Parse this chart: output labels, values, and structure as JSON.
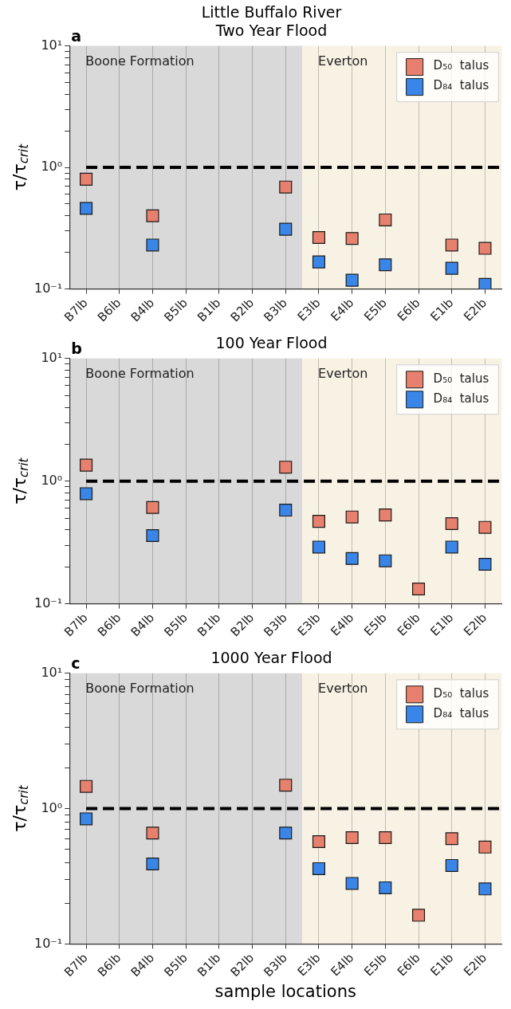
{
  "chart_data": [
    {
      "type": "scatter",
      "title": "Little Buffalo River",
      "subtitle": "Two Year Flood",
      "annotations": [
        "a"
      ],
      "ylabel": "τ/τ$_{crit}$",
      "categories": [
        "B7lb",
        "B6lb",
        "B4lb",
        "B5lb",
        "B1lb",
        "B2lb",
        "B3lb",
        "E3lb",
        "E4lb",
        "E5lb",
        "E6lb",
        "E1lb",
        "E2lb"
      ],
      "series": [
        {
          "name": "D₅₀  talus",
          "color": "#e8806e",
          "values": [
            0.8,
            null,
            0.4,
            null,
            null,
            null,
            0.69,
            0.265,
            0.26,
            0.37,
            null,
            0.23,
            0.216
          ]
        },
        {
          "name": "D₈₄  talus",
          "color": "#3a86e8",
          "values": [
            0.46,
            null,
            0.23,
            null,
            null,
            null,
            0.31,
            0.167,
            0.118,
            0.158,
            null,
            0.148,
            0.109
          ]
        }
      ],
      "ylim": [
        0.1,
        10
      ],
      "yticks": [
        {
          "value": 0.1,
          "label": "10⁻¹"
        },
        {
          "value": 0.2,
          "label": null
        },
        {
          "value": 0.3,
          "label": null
        },
        {
          "value": 0.4,
          "label": null
        },
        {
          "value": 0.5,
          "label": null
        },
        {
          "value": 0.6,
          "label": null
        },
        {
          "value": 0.7,
          "label": null
        },
        {
          "value": 0.8,
          "label": null
        },
        {
          "value": 0.9,
          "label": null
        },
        {
          "value": 1,
          "label": "10⁰"
        },
        {
          "value": 2,
          "label": null
        },
        {
          "value": 3,
          "label": null
        },
        {
          "value": 4,
          "label": null
        },
        {
          "value": 5,
          "label": null
        },
        {
          "value": 6,
          "label": null
        },
        {
          "value": 7,
          "label": null
        },
        {
          "value": 8,
          "label": null
        },
        {
          "value": 9,
          "label": null
        },
        {
          "value": 10,
          "label": "10¹"
        }
      ],
      "log": "y",
      "grid": "x",
      "legend": "top right",
      "marker": "square",
      "ref_lines": [
        {
          "axis": "y",
          "value": 1,
          "color": "#000000",
          "line_style": "dashed"
        }
      ],
      "bands": [
        {
          "axis": "x",
          "from": "B7lb",
          "to": "B3lb",
          "label": "Boone Formation",
          "color": "#d9d9d9"
        },
        {
          "axis": "x",
          "from": "E3lb",
          "to": "E2lb",
          "label": "Everton",
          "color": "#f8f2e4"
        }
      ]
    },
    {
      "type": "scatter",
      "title": "100 Year Flood",
      "annotations": [
        "b"
      ],
      "ylabel": "τ/τ$_{crit}$",
      "categories": [
        "B7lb",
        "B6lb",
        "B4lb",
        "B5lb",
        "B1lb",
        "B2lb",
        "B3lb",
        "E3lb",
        "E4lb",
        "E5lb",
        "E6lb",
        "E1lb",
        "E2lb"
      ],
      "series": [
        {
          "name": "D₅₀  talus",
          "color": "#e8806e",
          "values": [
            1.35,
            null,
            0.61,
            null,
            null,
            null,
            1.3,
            0.47,
            0.51,
            0.53,
            0.132,
            0.45,
            0.42
          ]
        },
        {
          "name": "D₈₄  talus",
          "color": "#3a86e8",
          "values": [
            0.79,
            null,
            0.36,
            null,
            null,
            null,
            0.58,
            0.29,
            0.234,
            0.224,
            null,
            0.29,
            0.21
          ]
        }
      ],
      "ylim": [
        0.1,
        10
      ],
      "yticks": [
        {
          "value": 0.1,
          "label": "10⁻¹"
        },
        {
          "value": 0.2,
          "label": null
        },
        {
          "value": 0.3,
          "label": null
        },
        {
          "value": 0.4,
          "label": null
        },
        {
          "value": 0.5,
          "label": null
        },
        {
          "value": 0.6,
          "label": null
        },
        {
          "value": 0.7,
          "label": null
        },
        {
          "value": 0.8,
          "label": null
        },
        {
          "value": 0.9,
          "label": null
        },
        {
          "value": 1,
          "label": "10⁰"
        },
        {
          "value": 2,
          "label": null
        },
        {
          "value": 3,
          "label": null
        },
        {
          "value": 4,
          "label": null
        },
        {
          "value": 5,
          "label": null
        },
        {
          "value": 6,
          "label": null
        },
        {
          "value": 7,
          "label": null
        },
        {
          "value": 8,
          "label": null
        },
        {
          "value": 9,
          "label": null
        },
        {
          "value": 10,
          "label": "10¹"
        }
      ],
      "log": "y",
      "grid": "x",
      "legend": "top right",
      "marker": "square",
      "ref_lines": [
        {
          "axis": "y",
          "value": 1,
          "color": "#000000",
          "line_style": "dashed"
        }
      ],
      "bands": [
        {
          "axis": "x",
          "from": "B7lb",
          "to": "B3lb",
          "label": "Boone Formation",
          "color": "#d9d9d9"
        },
        {
          "axis": "x",
          "from": "E3lb",
          "to": "E2lb",
          "label": "Everton",
          "color": "#f8f2e4"
        }
      ]
    },
    {
      "type": "scatter",
      "title": "1000 Year Flood",
      "annotations": [
        "c"
      ],
      "ylabel": "τ/τ$_{crit}$",
      "xlabel": "sample locations",
      "categories": [
        "B7lb",
        "B6lb",
        "B4lb",
        "B5lb",
        "B1lb",
        "B2lb",
        "B3lb",
        "E3lb",
        "E4lb",
        "E5lb",
        "E6lb",
        "E1lb",
        "E2lb"
      ],
      "series": [
        {
          "name": "D₅₀  talus",
          "color": "#e8806e",
          "values": [
            1.46,
            null,
            0.66,
            null,
            null,
            null,
            1.49,
            0.57,
            0.61,
            0.61,
            0.163,
            0.6,
            0.52
          ]
        },
        {
          "name": "D₈₄  talus",
          "color": "#3a86e8",
          "values": [
            0.84,
            null,
            0.39,
            null,
            null,
            null,
            0.66,
            0.36,
            0.28,
            0.26,
            null,
            0.38,
            0.255
          ]
        }
      ],
      "ylim": [
        0.1,
        10
      ],
      "yticks": [
        {
          "value": 0.1,
          "label": "10⁻¹"
        },
        {
          "value": 0.2,
          "label": null
        },
        {
          "value": 0.3,
          "label": null
        },
        {
          "value": 0.4,
          "label": null
        },
        {
          "value": 0.5,
          "label": null
        },
        {
          "value": 0.6,
          "label": null
        },
        {
          "value": 0.7,
          "label": null
        },
        {
          "value": 0.8,
          "label": null
        },
        {
          "value": 0.9,
          "label": null
        },
        {
          "value": 1,
          "label": "10⁰"
        },
        {
          "value": 2,
          "label": null
        },
        {
          "value": 3,
          "label": null
        },
        {
          "value": 4,
          "label": null
        },
        {
          "value": 5,
          "label": null
        },
        {
          "value": 6,
          "label": null
        },
        {
          "value": 7,
          "label": null
        },
        {
          "value": 8,
          "label": null
        },
        {
          "value": 9,
          "label": null
        },
        {
          "value": 10,
          "label": "10¹"
        }
      ],
      "log": "y",
      "grid": "x",
      "legend": "top right",
      "marker": "square",
      "ref_lines": [
        {
          "axis": "y",
          "value": 1,
          "color": "#000000",
          "line_style": "dashed"
        }
      ],
      "bands": [
        {
          "axis": "x",
          "from": "B7lb",
          "to": "B3lb",
          "label": "Boone Formation",
          "color": "#d9d9d9"
        },
        {
          "axis": "x",
          "from": "E3lb",
          "to": "E2lb",
          "label": "Everton",
          "color": "#f8f2e4"
        }
      ]
    }
  ]
}
